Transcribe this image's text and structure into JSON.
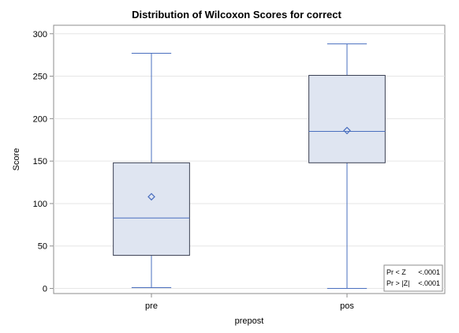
{
  "chart_data": {
    "type": "box",
    "title": "Distribution of Wilcoxon Scores for correct",
    "xlabel": "prepost",
    "ylabel": "Score",
    "ylim": [
      -6,
      310
    ],
    "yticks": [
      0,
      50,
      100,
      150,
      200,
      250,
      300
    ],
    "ytick_labels": [
      "0",
      "50",
      "100",
      "150",
      "200",
      "250",
      "300"
    ],
    "grid": true,
    "categories": [
      "pre",
      "pos"
    ],
    "boxes": [
      {
        "category": "pre",
        "min": 1,
        "q1": 39,
        "median": 83,
        "mean": 108,
        "q3": 148,
        "max": 277
      },
      {
        "category": "pos",
        "min": 0,
        "q1": 148,
        "median": 185,
        "mean": 186,
        "q3": 251,
        "max": 288
      }
    ],
    "inset_placement": "bottom-right",
    "inset": [
      {
        "label": "Pr < Z",
        "value": "<.0001"
      },
      {
        "label": "Pr > |Z|",
        "value": "<.0001"
      }
    ],
    "colors": {
      "box_fill": "#dfe5f1",
      "box_edge": "#3a3f52",
      "median_line": "#4a6fbf",
      "whisker": "#4a6fbf",
      "mean_marker": "#4a6fbf",
      "grid": "#e6e6e6",
      "axis": "#8e8e8e"
    }
  }
}
